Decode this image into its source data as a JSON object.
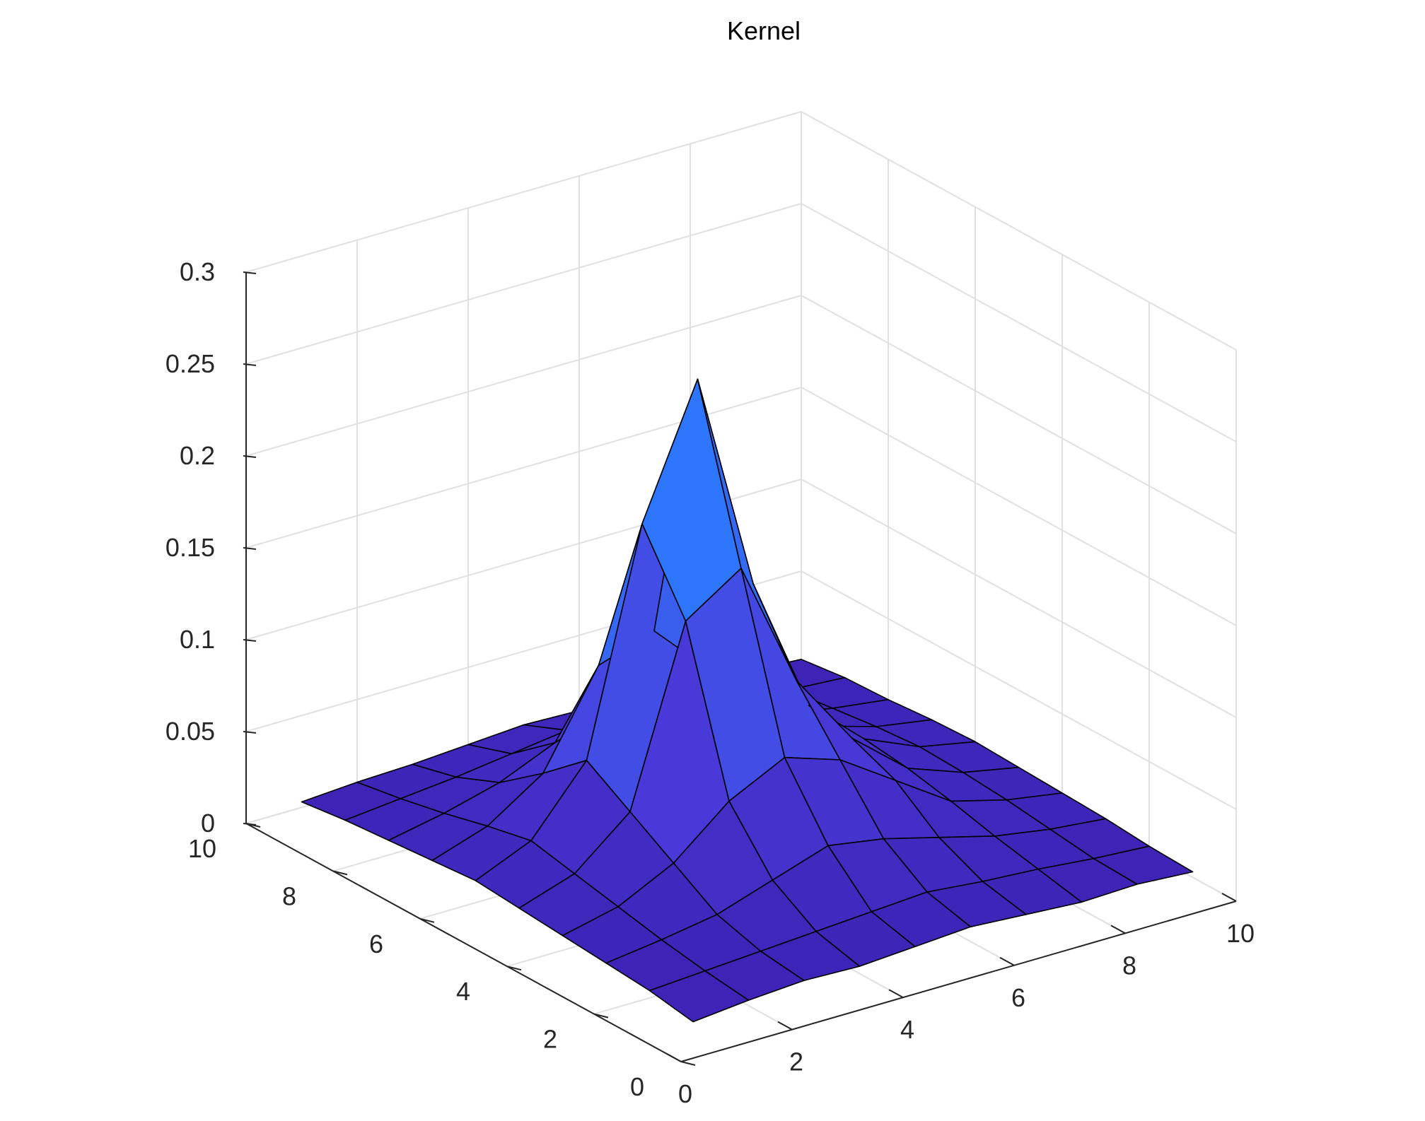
{
  "chart_data": {
    "type": "surface",
    "title": "Kernel",
    "xlabel": "",
    "ylabel": "",
    "zlabel": "",
    "x": [
      1,
      2,
      3,
      4,
      5,
      6,
      7,
      8,
      9,
      10
    ],
    "y": [
      1,
      2,
      3,
      4,
      5,
      6,
      7,
      8,
      9,
      10
    ],
    "z": [
      [
        0.0,
        0.003,
        0.005,
        0.004,
        0.006,
        0.008,
        0.006,
        0.004,
        0.005,
        0.003
      ],
      [
        0.004,
        0.006,
        0.008,
        0.01,
        0.012,
        0.014,
        0.011,
        0.009,
        0.006,
        0.004
      ],
      [
        0.006,
        0.01,
        0.015,
        0.025,
        0.035,
        0.03,
        0.022,
        0.014,
        0.009,
        0.006
      ],
      [
        0.008,
        0.015,
        0.03,
        0.055,
        0.07,
        0.06,
        0.04,
        0.02,
        0.012,
        0.007
      ],
      [
        0.01,
        0.02,
        0.045,
        0.14,
        0.16,
        0.09,
        0.05,
        0.025,
        0.014,
        0.008
      ],
      [
        0.012,
        0.025,
        0.06,
        0.18,
        0.25,
        0.13,
        0.055,
        0.028,
        0.015,
        0.009
      ],
      [
        0.01,
        0.02,
        0.04,
        0.09,
        0.1,
        0.07,
        0.04,
        0.022,
        0.013,
        0.008
      ],
      [
        0.008,
        0.014,
        0.022,
        0.035,
        0.045,
        0.04,
        0.028,
        0.016,
        0.01,
        0.006
      ],
      [
        0.006,
        0.009,
        0.012,
        0.016,
        0.02,
        0.018,
        0.014,
        0.01,
        0.007,
        0.005
      ],
      [
        0.003,
        0.005,
        0.006,
        0.008,
        0.01,
        0.009,
        0.007,
        0.005,
        0.004,
        0.002
      ]
    ],
    "xlim": [
      0,
      10
    ],
    "ylim": [
      0,
      10
    ],
    "zlim": [
      0,
      0.3
    ],
    "x_ticks": [
      "0",
      "2",
      "4",
      "6",
      "8",
      "10"
    ],
    "y_ticks": [
      "0",
      "2",
      "4",
      "6",
      "8",
      "10"
    ],
    "z_ticks": [
      "0",
      "0.05",
      "0.1",
      "0.15",
      "0.2",
      "0.25",
      "0.3"
    ],
    "grid": true,
    "colors": {
      "low": "#3c22b4",
      "mid": "#4a3cdc",
      "high": "#2a7dff",
      "edge": "#000000",
      "grid": "#e0e0e0",
      "axis": "#262626"
    }
  }
}
